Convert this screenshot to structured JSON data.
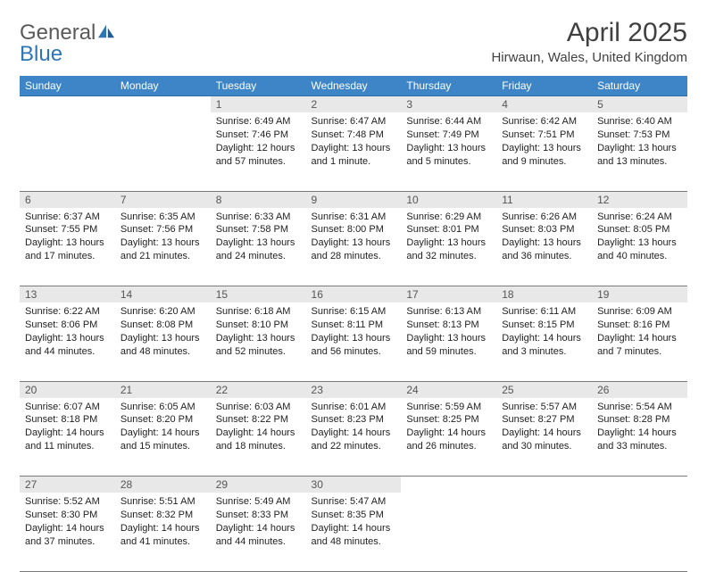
{
  "brand": {
    "word1": "General",
    "word2": "Blue"
  },
  "title": "April 2025",
  "location": "Hirwaun, Wales, United Kingdom",
  "colors": {
    "header_bg": "#3d85c6",
    "header_text": "#ffffff",
    "daynum_bg": "#e8e8e8",
    "border": "#7a7a7a",
    "logo_gray": "#5a5a5a",
    "logo_blue": "#2e75b6"
  },
  "weekdays": [
    "Sunday",
    "Monday",
    "Tuesday",
    "Wednesday",
    "Thursday",
    "Friday",
    "Saturday"
  ],
  "weeks": [
    {
      "days": [
        {
          "num": "",
          "sunrise": "",
          "sunset": "",
          "daylight": ""
        },
        {
          "num": "",
          "sunrise": "",
          "sunset": "",
          "daylight": ""
        },
        {
          "num": "1",
          "sunrise": "Sunrise: 6:49 AM",
          "sunset": "Sunset: 7:46 PM",
          "daylight": "Daylight: 12 hours and 57 minutes."
        },
        {
          "num": "2",
          "sunrise": "Sunrise: 6:47 AM",
          "sunset": "Sunset: 7:48 PM",
          "daylight": "Daylight: 13 hours and 1 minute."
        },
        {
          "num": "3",
          "sunrise": "Sunrise: 6:44 AM",
          "sunset": "Sunset: 7:49 PM",
          "daylight": "Daylight: 13 hours and 5 minutes."
        },
        {
          "num": "4",
          "sunrise": "Sunrise: 6:42 AM",
          "sunset": "Sunset: 7:51 PM",
          "daylight": "Daylight: 13 hours and 9 minutes."
        },
        {
          "num": "5",
          "sunrise": "Sunrise: 6:40 AM",
          "sunset": "Sunset: 7:53 PM",
          "daylight": "Daylight: 13 hours and 13 minutes."
        }
      ]
    },
    {
      "days": [
        {
          "num": "6",
          "sunrise": "Sunrise: 6:37 AM",
          "sunset": "Sunset: 7:55 PM",
          "daylight": "Daylight: 13 hours and 17 minutes."
        },
        {
          "num": "7",
          "sunrise": "Sunrise: 6:35 AM",
          "sunset": "Sunset: 7:56 PM",
          "daylight": "Daylight: 13 hours and 21 minutes."
        },
        {
          "num": "8",
          "sunrise": "Sunrise: 6:33 AM",
          "sunset": "Sunset: 7:58 PM",
          "daylight": "Daylight: 13 hours and 24 minutes."
        },
        {
          "num": "9",
          "sunrise": "Sunrise: 6:31 AM",
          "sunset": "Sunset: 8:00 PM",
          "daylight": "Daylight: 13 hours and 28 minutes."
        },
        {
          "num": "10",
          "sunrise": "Sunrise: 6:29 AM",
          "sunset": "Sunset: 8:01 PM",
          "daylight": "Daylight: 13 hours and 32 minutes."
        },
        {
          "num": "11",
          "sunrise": "Sunrise: 6:26 AM",
          "sunset": "Sunset: 8:03 PM",
          "daylight": "Daylight: 13 hours and 36 minutes."
        },
        {
          "num": "12",
          "sunrise": "Sunrise: 6:24 AM",
          "sunset": "Sunset: 8:05 PM",
          "daylight": "Daylight: 13 hours and 40 minutes."
        }
      ]
    },
    {
      "days": [
        {
          "num": "13",
          "sunrise": "Sunrise: 6:22 AM",
          "sunset": "Sunset: 8:06 PM",
          "daylight": "Daylight: 13 hours and 44 minutes."
        },
        {
          "num": "14",
          "sunrise": "Sunrise: 6:20 AM",
          "sunset": "Sunset: 8:08 PM",
          "daylight": "Daylight: 13 hours and 48 minutes."
        },
        {
          "num": "15",
          "sunrise": "Sunrise: 6:18 AM",
          "sunset": "Sunset: 8:10 PM",
          "daylight": "Daylight: 13 hours and 52 minutes."
        },
        {
          "num": "16",
          "sunrise": "Sunrise: 6:15 AM",
          "sunset": "Sunset: 8:11 PM",
          "daylight": "Daylight: 13 hours and 56 minutes."
        },
        {
          "num": "17",
          "sunrise": "Sunrise: 6:13 AM",
          "sunset": "Sunset: 8:13 PM",
          "daylight": "Daylight: 13 hours and 59 minutes."
        },
        {
          "num": "18",
          "sunrise": "Sunrise: 6:11 AM",
          "sunset": "Sunset: 8:15 PM",
          "daylight": "Daylight: 14 hours and 3 minutes."
        },
        {
          "num": "19",
          "sunrise": "Sunrise: 6:09 AM",
          "sunset": "Sunset: 8:16 PM",
          "daylight": "Daylight: 14 hours and 7 minutes."
        }
      ]
    },
    {
      "days": [
        {
          "num": "20",
          "sunrise": "Sunrise: 6:07 AM",
          "sunset": "Sunset: 8:18 PM",
          "daylight": "Daylight: 14 hours and 11 minutes."
        },
        {
          "num": "21",
          "sunrise": "Sunrise: 6:05 AM",
          "sunset": "Sunset: 8:20 PM",
          "daylight": "Daylight: 14 hours and 15 minutes."
        },
        {
          "num": "22",
          "sunrise": "Sunrise: 6:03 AM",
          "sunset": "Sunset: 8:22 PM",
          "daylight": "Daylight: 14 hours and 18 minutes."
        },
        {
          "num": "23",
          "sunrise": "Sunrise: 6:01 AM",
          "sunset": "Sunset: 8:23 PM",
          "daylight": "Daylight: 14 hours and 22 minutes."
        },
        {
          "num": "24",
          "sunrise": "Sunrise: 5:59 AM",
          "sunset": "Sunset: 8:25 PM",
          "daylight": "Daylight: 14 hours and 26 minutes."
        },
        {
          "num": "25",
          "sunrise": "Sunrise: 5:57 AM",
          "sunset": "Sunset: 8:27 PM",
          "daylight": "Daylight: 14 hours and 30 minutes."
        },
        {
          "num": "26",
          "sunrise": "Sunrise: 5:54 AM",
          "sunset": "Sunset: 8:28 PM",
          "daylight": "Daylight: 14 hours and 33 minutes."
        }
      ]
    },
    {
      "days": [
        {
          "num": "27",
          "sunrise": "Sunrise: 5:52 AM",
          "sunset": "Sunset: 8:30 PM",
          "daylight": "Daylight: 14 hours and 37 minutes."
        },
        {
          "num": "28",
          "sunrise": "Sunrise: 5:51 AM",
          "sunset": "Sunset: 8:32 PM",
          "daylight": "Daylight: 14 hours and 41 minutes."
        },
        {
          "num": "29",
          "sunrise": "Sunrise: 5:49 AM",
          "sunset": "Sunset: 8:33 PM",
          "daylight": "Daylight: 14 hours and 44 minutes."
        },
        {
          "num": "30",
          "sunrise": "Sunrise: 5:47 AM",
          "sunset": "Sunset: 8:35 PM",
          "daylight": "Daylight: 14 hours and 48 minutes."
        },
        {
          "num": "",
          "sunrise": "",
          "sunset": "",
          "daylight": ""
        },
        {
          "num": "",
          "sunrise": "",
          "sunset": "",
          "daylight": ""
        },
        {
          "num": "",
          "sunrise": "",
          "sunset": "",
          "daylight": ""
        }
      ]
    }
  ]
}
